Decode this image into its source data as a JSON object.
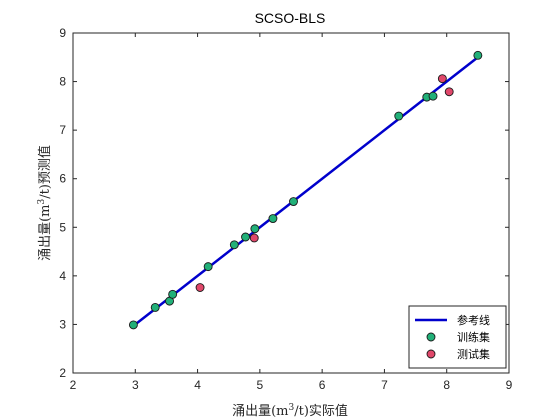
{
  "chart_data": {
    "type": "scatter",
    "title": "SCSO-BLS",
    "xlabel": "涌出量(m³/t)实际值",
    "ylabel": "涌出量(m³/t)预测值",
    "xlim": [
      2,
      9
    ],
    "ylim": [
      2,
      9
    ],
    "xticks": [
      "2",
      "3",
      "4",
      "5",
      "6",
      "7",
      "8",
      "9"
    ],
    "yticks": [
      "2",
      "3",
      "4",
      "5",
      "6",
      "7",
      "8",
      "9"
    ],
    "grid": false,
    "legend_position": "bottom-right",
    "series": [
      {
        "name": "参考线",
        "kind": "line",
        "color": "#0000cc",
        "x": [
          2.97,
          8.5
        ],
        "y": [
          2.97,
          8.5
        ]
      },
      {
        "name": "训练集",
        "kind": "scatter",
        "color": "#21b078",
        "x": [
          2.97,
          3.32,
          3.55,
          3.6,
          4.17,
          4.59,
          4.77,
          4.92,
          5.21,
          5.54,
          7.23,
          7.68,
          7.78,
          8.5
        ],
        "y": [
          2.99,
          3.35,
          3.48,
          3.62,
          4.19,
          4.64,
          4.8,
          4.97,
          5.18,
          5.53,
          7.29,
          7.68,
          7.7,
          8.54
        ]
      },
      {
        "name": "测试集",
        "kind": "scatter",
        "color": "#e0476a",
        "x": [
          4.04,
          4.91,
          7.93,
          8.04
        ],
        "y": [
          3.76,
          4.78,
          8.06,
          7.79
        ]
      }
    ]
  }
}
